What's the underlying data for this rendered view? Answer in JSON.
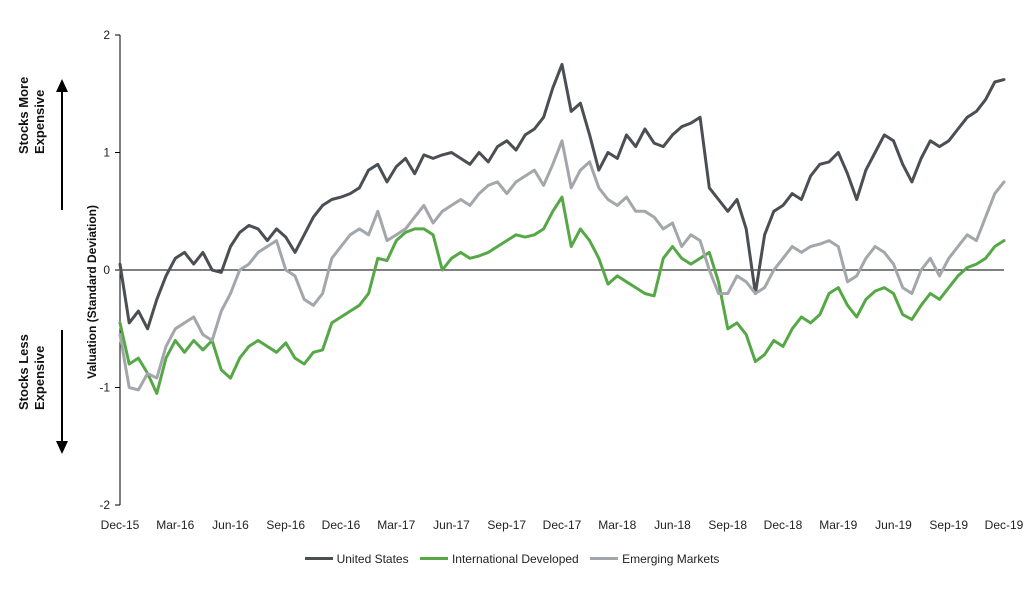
{
  "chart_data": {
    "type": "line",
    "title": "",
    "xlabel": "",
    "ylabel": "Valuation (Standard Deviation)",
    "ylim": [
      -2,
      2
    ],
    "yticks": [
      2,
      1,
      0,
      -1,
      -2
    ],
    "xtick_labels": [
      "Dec-15",
      "Mar-16",
      "Jun-16",
      "Sep-16",
      "Dec-16",
      "Mar-17",
      "Jun-17",
      "Sep-17",
      "Dec-17",
      "Mar-18",
      "Jun-18",
      "Sep-18",
      "Dec-18",
      "Mar-19",
      "Jun-19",
      "Sep-19",
      "Dec-19"
    ],
    "x_start": "Dec-15",
    "x_end": "Dec-19",
    "legend_position": "bottom",
    "annotations": {
      "upper": [
        "Stocks More",
        "Expensive"
      ],
      "lower": [
        "Stocks Less",
        "Expensive"
      ]
    },
    "series": [
      {
        "name": "United States",
        "color": "#4b4f54",
        "values": [
          0.05,
          -0.45,
          -0.35,
          -0.5,
          -0.25,
          -0.05,
          0.1,
          0.15,
          0.05,
          0.15,
          0.0,
          -0.02,
          0.2,
          0.32,
          0.38,
          0.35,
          0.25,
          0.35,
          0.28,
          0.15,
          0.3,
          0.45,
          0.55,
          0.6,
          0.62,
          0.65,
          0.7,
          0.85,
          0.9,
          0.75,
          0.88,
          0.95,
          0.82,
          0.98,
          0.95,
          0.98,
          1.0,
          0.95,
          0.9,
          1.0,
          0.92,
          1.05,
          1.1,
          1.02,
          1.15,
          1.2,
          1.3,
          1.55,
          1.75,
          1.35,
          1.42,
          1.15,
          0.85,
          1.0,
          0.95,
          1.15,
          1.05,
          1.2,
          1.08,
          1.05,
          1.15,
          1.22,
          1.25,
          1.3,
          0.7,
          0.6,
          0.5,
          0.6,
          0.35,
          -0.2,
          0.3,
          0.5,
          0.55,
          0.65,
          0.6,
          0.8,
          0.9,
          0.92,
          1.0,
          0.82,
          0.6,
          0.85,
          1.0,
          1.15,
          1.1,
          0.9,
          0.75,
          0.95,
          1.1,
          1.05,
          1.1,
          1.2,
          1.3,
          1.35,
          1.45,
          1.6,
          1.62
        ]
      },
      {
        "name": "International Developed",
        "color": "#56a846",
        "values": [
          -0.45,
          -0.8,
          -0.75,
          -0.88,
          -1.05,
          -0.75,
          -0.6,
          -0.7,
          -0.6,
          -0.68,
          -0.6,
          -0.85,
          -0.92,
          -0.75,
          -0.65,
          -0.6,
          -0.65,
          -0.7,
          -0.62,
          -0.75,
          -0.8,
          -0.7,
          -0.68,
          -0.45,
          -0.4,
          -0.35,
          -0.3,
          -0.2,
          0.1,
          0.08,
          0.25,
          0.32,
          0.35,
          0.35,
          0.3,
          0.0,
          0.1,
          0.15,
          0.1,
          0.12,
          0.15,
          0.2,
          0.25,
          0.3,
          0.28,
          0.3,
          0.35,
          0.5,
          0.62,
          0.2,
          0.35,
          0.25,
          0.1,
          -0.12,
          -0.05,
          -0.1,
          -0.15,
          -0.2,
          -0.22,
          0.1,
          0.2,
          0.1,
          0.05,
          0.1,
          0.15,
          -0.1,
          -0.5,
          -0.45,
          -0.55,
          -0.78,
          -0.72,
          -0.6,
          -0.65,
          -0.5,
          -0.4,
          -0.45,
          -0.38,
          -0.2,
          -0.15,
          -0.3,
          -0.4,
          -0.25,
          -0.18,
          -0.15,
          -0.2,
          -0.38,
          -0.42,
          -0.3,
          -0.2,
          -0.25,
          -0.15,
          -0.05,
          0.02,
          0.05,
          0.1,
          0.2,
          0.25
        ]
      },
      {
        "name": "Emerging Markets",
        "color": "#a3a6aa",
        "values": [
          -0.55,
          -1.0,
          -1.02,
          -0.88,
          -0.92,
          -0.65,
          -0.5,
          -0.45,
          -0.4,
          -0.55,
          -0.6,
          -0.35,
          -0.2,
          0.0,
          0.05,
          0.15,
          0.2,
          0.25,
          0.0,
          -0.05,
          -0.25,
          -0.3,
          -0.2,
          0.1,
          0.2,
          0.3,
          0.35,
          0.3,
          0.5,
          0.25,
          0.3,
          0.35,
          0.45,
          0.55,
          0.4,
          0.5,
          0.55,
          0.6,
          0.55,
          0.65,
          0.72,
          0.75,
          0.65,
          0.75,
          0.8,
          0.85,
          0.72,
          0.9,
          1.1,
          0.7,
          0.85,
          0.92,
          0.7,
          0.6,
          0.55,
          0.62,
          0.5,
          0.5,
          0.45,
          0.35,
          0.4,
          0.2,
          0.3,
          0.25,
          0.0,
          -0.2,
          -0.2,
          -0.05,
          -0.1,
          -0.2,
          -0.15,
          0.0,
          0.1,
          0.2,
          0.15,
          0.2,
          0.22,
          0.25,
          0.2,
          -0.1,
          -0.05,
          0.1,
          0.2,
          0.15,
          0.05,
          -0.15,
          -0.2,
          0.0,
          0.1,
          -0.05,
          0.1,
          0.2,
          0.3,
          0.25,
          0.45,
          0.65,
          0.75
        ]
      }
    ]
  }
}
